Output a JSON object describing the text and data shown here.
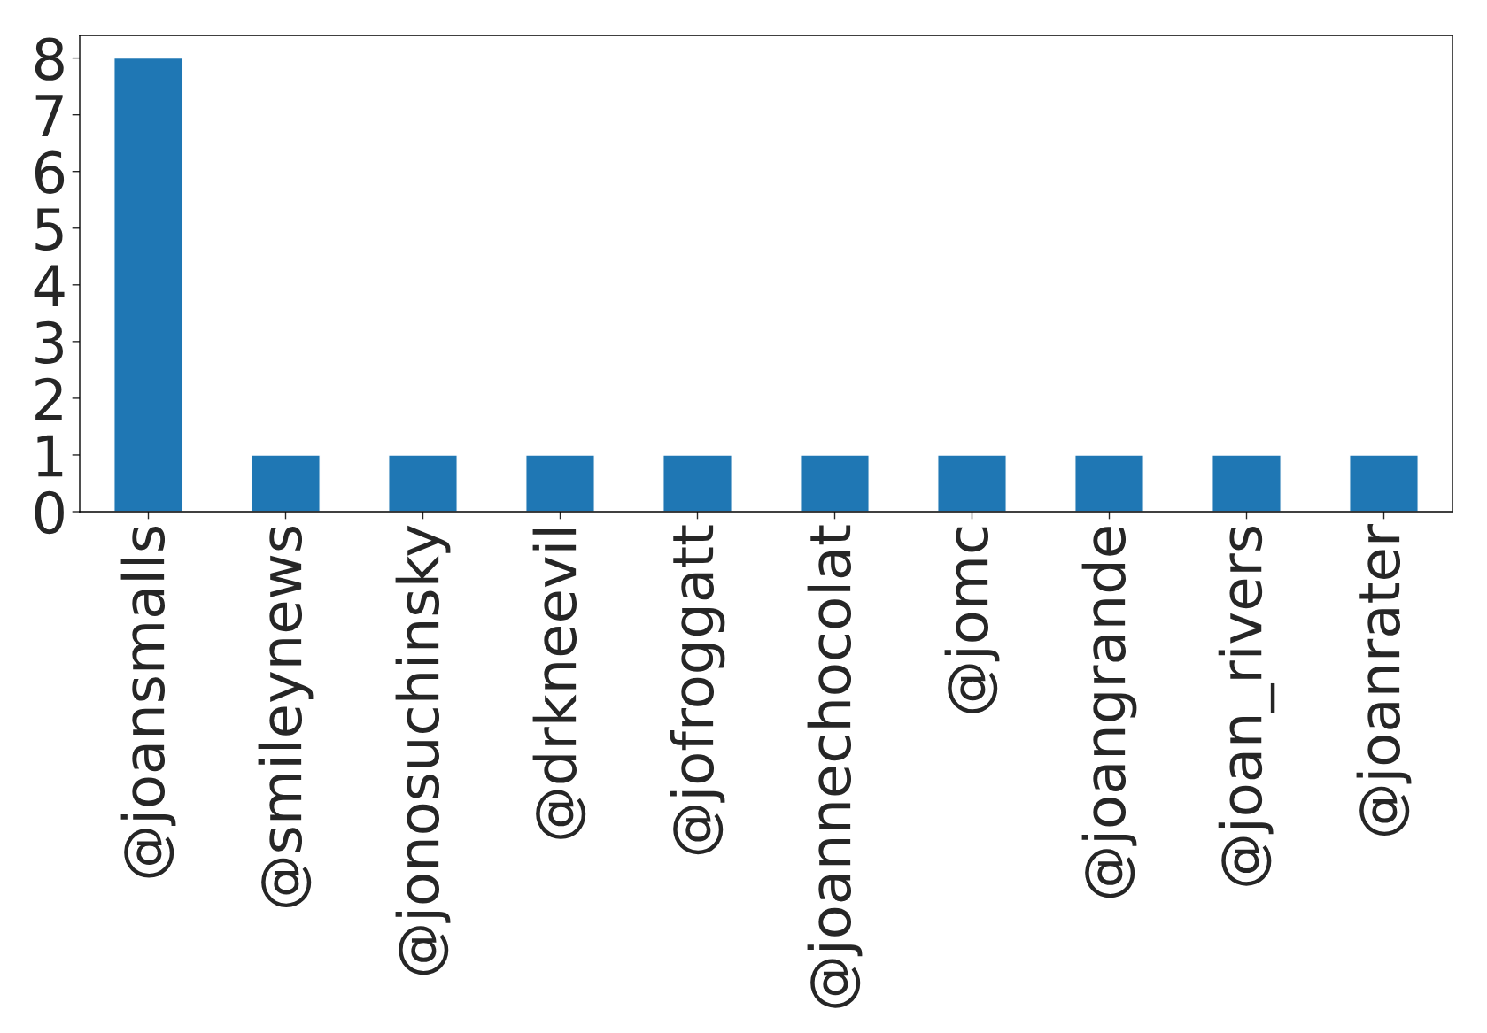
{
  "chart_data": {
    "type": "bar",
    "categories": [
      "@joansmalls",
      "@smileynews",
      "@jonosuchinsky",
      "@drkneevil",
      "@jofroggatt",
      "@joannechocolat",
      "@jomc",
      "@joangrande",
      "@joan_rivers",
      "@joanrater"
    ],
    "values": [
      8,
      1,
      1,
      1,
      1,
      1,
      1,
      1,
      1,
      1
    ],
    "color": "#1f77b4",
    "ylim": [
      0,
      8.4
    ],
    "yticks": [
      0,
      1,
      2,
      3,
      4,
      5,
      6,
      7,
      8
    ],
    "grid": false,
    "legend": false
  }
}
